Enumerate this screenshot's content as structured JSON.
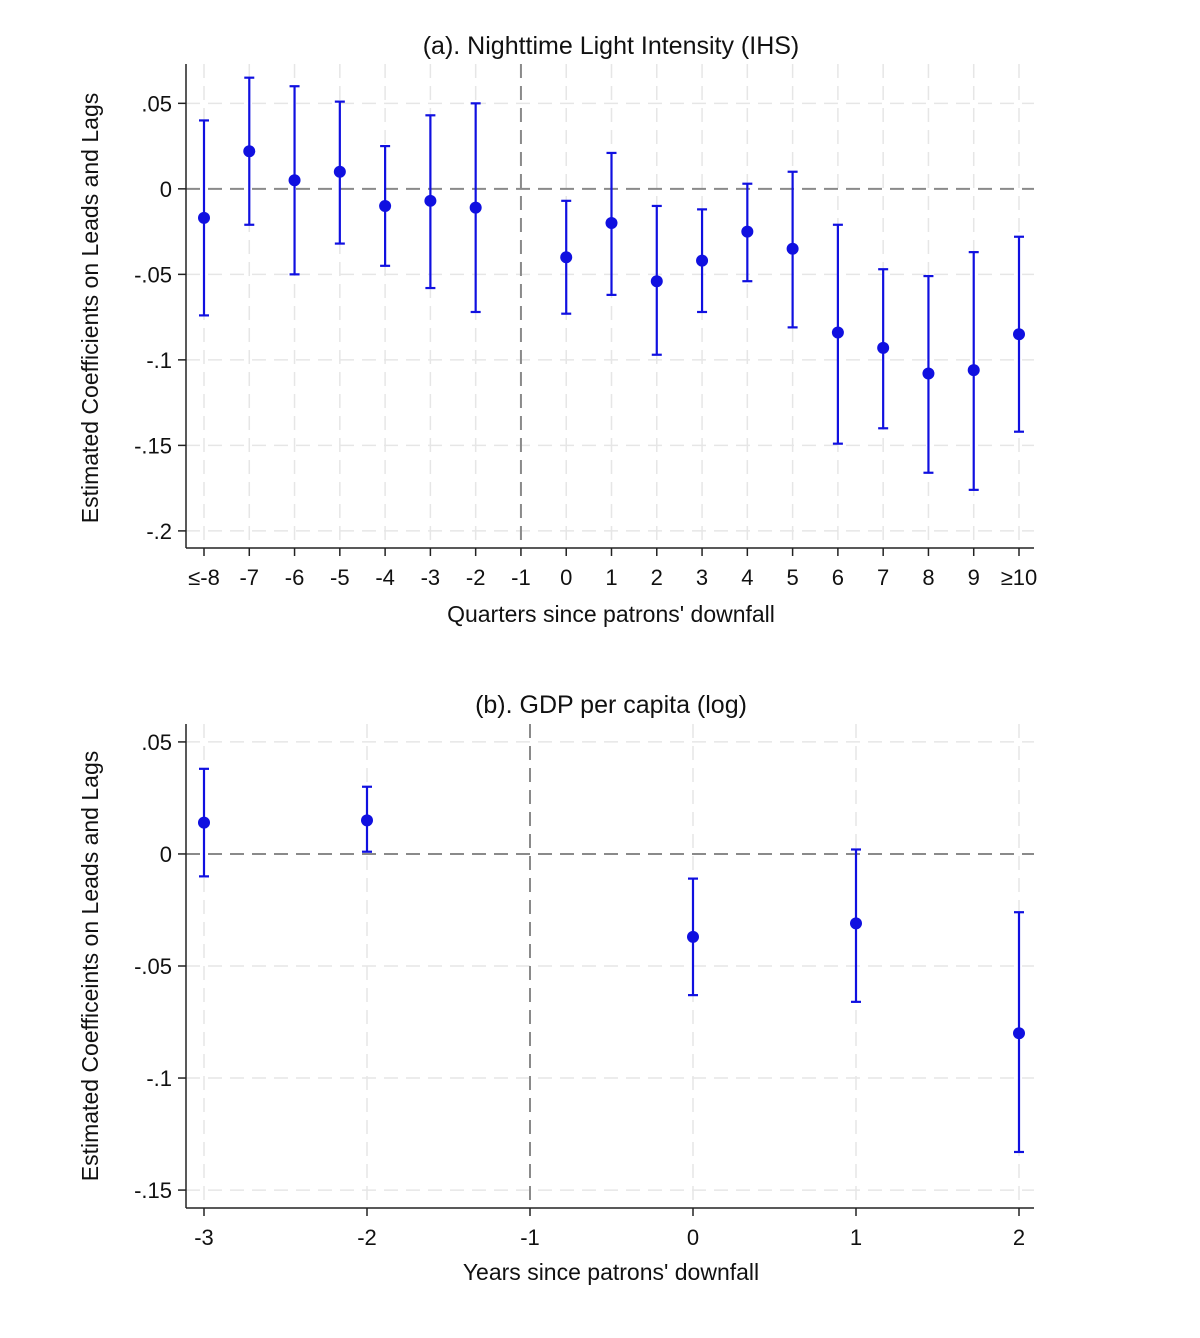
{
  "chart_data": [
    {
      "type": "scatter",
      "subtype": "coefficient-plot-with-confidence-intervals",
      "title": "(a). Nighttime Light Intensity (IHS)",
      "xlabel": "Quarters since patrons' downfall",
      "ylabel": "Estimated Coefficients on Leads and Lags",
      "categories": [
        "≤-8",
        "-7",
        "-6",
        "-5",
        "-4",
        "-3",
        "-2",
        "-1",
        "0",
        "1",
        "2",
        "3",
        "4",
        "5",
        "6",
        "7",
        "8",
        "9",
        "≥10"
      ],
      "y_ticks": [
        0.05,
        0,
        -0.05,
        -0.1,
        -0.15,
        -0.2
      ],
      "y_tick_labels": [
        ".05",
        "0",
        "-.05",
        "-.1",
        "-.15",
        "-.2"
      ],
      "ylim": [
        -0.21,
        0.073
      ],
      "reference_line_y": 0,
      "reference_line_x": "-1",
      "marker_color": "#1010e0",
      "series": [
        {
          "name": "Coefficient",
          "points": [
            {
              "x": "≤-8",
              "y": -0.017,
              "lo": -0.074,
              "hi": 0.04
            },
            {
              "x": "-7",
              "y": 0.022,
              "lo": -0.021,
              "hi": 0.065
            },
            {
              "x": "-6",
              "y": 0.005,
              "lo": -0.05,
              "hi": 0.06
            },
            {
              "x": "-5",
              "y": 0.01,
              "lo": -0.032,
              "hi": 0.051
            },
            {
              "x": "-4",
              "y": -0.01,
              "lo": -0.045,
              "hi": 0.025
            },
            {
              "x": "-3",
              "y": -0.007,
              "lo": -0.058,
              "hi": 0.043
            },
            {
              "x": "-2",
              "y": -0.011,
              "lo": -0.072,
              "hi": 0.05
            },
            {
              "x": "0",
              "y": -0.04,
              "lo": -0.073,
              "hi": -0.007
            },
            {
              "x": "1",
              "y": -0.02,
              "lo": -0.062,
              "hi": 0.021
            },
            {
              "x": "2",
              "y": -0.054,
              "lo": -0.097,
              "hi": -0.01
            },
            {
              "x": "3",
              "y": -0.042,
              "lo": -0.072,
              "hi": -0.012
            },
            {
              "x": "4",
              "y": -0.025,
              "lo": -0.054,
              "hi": 0.003
            },
            {
              "x": "5",
              "y": -0.035,
              "lo": -0.081,
              "hi": 0.01
            },
            {
              "x": "6",
              "y": -0.084,
              "lo": -0.149,
              "hi": -0.021
            },
            {
              "x": "7",
              "y": -0.093,
              "lo": -0.14,
              "hi": -0.047
            },
            {
              "x": "8",
              "y": -0.108,
              "lo": -0.166,
              "hi": -0.051
            },
            {
              "x": "9",
              "y": -0.106,
              "lo": -0.176,
              "hi": -0.037
            },
            {
              "x": "≥10",
              "y": -0.085,
              "lo": -0.142,
              "hi": -0.028
            }
          ]
        }
      ]
    },
    {
      "type": "scatter",
      "subtype": "coefficient-plot-with-confidence-intervals",
      "title": "(b). GDP per capita (log)",
      "xlabel": "Years since patrons' downfall",
      "ylabel": "Estimated Coefficeints on Leads and Lags",
      "categories": [
        "-3",
        "-2",
        "-1",
        "0",
        "1",
        "2"
      ],
      "y_ticks": [
        0.05,
        0,
        -0.05,
        -0.1,
        -0.15
      ],
      "y_tick_labels": [
        ".05",
        "0",
        "-.05",
        "-.1",
        "-.15"
      ],
      "ylim": [
        -0.158,
        0.058
      ],
      "reference_line_y": 0,
      "reference_line_x": "-1",
      "marker_color": "#1010e0",
      "series": [
        {
          "name": "Coefficient",
          "points": [
            {
              "x": "-3",
              "y": 0.014,
              "lo": -0.01,
              "hi": 0.038
            },
            {
              "x": "-2",
              "y": 0.015,
              "lo": 0.001,
              "hi": 0.03
            },
            {
              "x": "0",
              "y": -0.037,
              "lo": -0.063,
              "hi": -0.011
            },
            {
              "x": "1",
              "y": -0.031,
              "lo": -0.066,
              "hi": 0.002
            },
            {
              "x": "2",
              "y": -0.08,
              "lo": -0.133,
              "hi": -0.026
            }
          ]
        }
      ]
    }
  ]
}
